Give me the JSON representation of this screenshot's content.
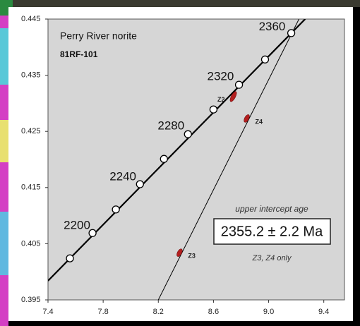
{
  "chart_data": {
    "type": "scatter",
    "title": "Perry River norite",
    "subtitle": "81RF-101",
    "xlim": [
      7.4,
      9.55
    ],
    "ylim": [
      0.395,
      0.445
    ],
    "xticks": [
      7.4,
      7.8,
      8.2,
      8.6,
      {
        "value": 9,
        "label": "9.0"
      },
      9.4
    ],
    "yticks": [
      0.395,
      0.405,
      0.415,
      0.425,
      0.435,
      0.445
    ],
    "concordia_curve": {
      "color": "#000000",
      "x": [
        7.4,
        9.265
      ],
      "y": [
        0.3984,
        0.445
      ]
    },
    "age_points": {
      "x": [
        7.559,
        7.723,
        7.892,
        8.067,
        8.241,
        8.415,
        8.6,
        8.785,
        8.974,
        9.164
      ],
      "y": [
        0.4024,
        0.4069,
        0.4111,
        0.4156,
        0.4201,
        0.4245,
        0.4289,
        0.4333,
        0.4378,
        0.4425
      ]
    },
    "age_labels": [
      2200,
      2240,
      2280,
      2320,
      2360
    ],
    "discordia": {
      "color": "#000000",
      "x": [
        8.2,
        9.22
      ],
      "y": [
        0.395,
        0.445
      ]
    },
    "zircons": {
      "color": "#b42020",
      "labels": [
        "Z2",
        "Z4",
        "Z3"
      ],
      "x": [
        8.744,
        8.841,
        8.354
      ],
      "y": [
        0.4312,
        0.4273,
        0.4034
      ]
    },
    "annotation": {
      "heading": "upper intercept age",
      "value": "2355.2 ± 2.2 Ma",
      "note": "Z3, Z4 only"
    }
  }
}
